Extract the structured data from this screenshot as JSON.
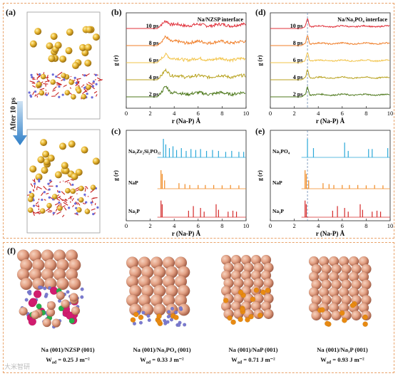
{
  "figure": {
    "panel_labels": {
      "a": "(a)",
      "b": "(b)",
      "c": "(c)",
      "d": "(d)",
      "e": "(e)",
      "f": "(f)"
    },
    "after_label": "After 10 ps",
    "watermark": "大米智研"
  },
  "colors": {
    "frame": "#e9a36a",
    "line_10ps": "#e0303a",
    "line_8ps": "#f07f2a",
    "line_6ps": "#f2c44a",
    "line_4ps": "#b8a21e",
    "line_2ps": "#4f7a1e",
    "xrd_blue": "#2aa8d8",
    "xrd_orange": "#f08a22",
    "xrd_red": "#d42a2a",
    "na_atom": "#e8a37e",
    "na_atom_dark": "#b76c4e",
    "p_atom": "#e88a12",
    "o_atom": "#7a7ad0",
    "zr_atom": "#d01c6e",
    "si_atom": "#28b04a"
  },
  "chart_data": [
    {
      "id": "b",
      "type": "line",
      "title": "Na/NZSP interface",
      "xlabel": "r (Na-P) Å",
      "ylabel": "g (r)",
      "xlim": [
        0,
        10
      ],
      "xticks": [
        0,
        2,
        4,
        6,
        8,
        10
      ],
      "series": [
        {
          "name": "10 ps",
          "peak_r": 3.3,
          "peak_h": 0.55
        },
        {
          "name": "8 ps",
          "peak_r": 3.3,
          "peak_h": 0.7
        },
        {
          "name": "6 ps",
          "peak_r": 3.3,
          "peak_h": 0.65
        },
        {
          "name": "4 ps",
          "peak_r": 3.3,
          "peak_h": 0.8
        },
        {
          "name": "2 ps",
          "peak_r": 3.3,
          "peak_h": 0.9
        }
      ]
    },
    {
      "id": "d",
      "type": "line",
      "title": "Na/Na₃PO₄ interface",
      "xlabel": "r (Na-P) Å",
      "ylabel": "g (r)",
      "xlim": [
        0,
        10
      ],
      "xticks": [
        0,
        2,
        4,
        6,
        8,
        10
      ],
      "series": [
        {
          "name": "10 ps",
          "peak_r": 3.1,
          "peak_h": 0.95
        },
        {
          "name": "8 ps",
          "peak_r": 3.1,
          "peak_h": 0.95
        },
        {
          "name": "6 ps",
          "peak_r": 3.1,
          "peak_h": 0.95
        },
        {
          "name": "4 ps",
          "peak_r": 3.1,
          "peak_h": 0.95
        },
        {
          "name": "2 ps",
          "peak_r": 3.1,
          "peak_h": 0.95
        }
      ]
    },
    {
      "id": "c",
      "type": "line",
      "xlabel": "r (Na-P) Å",
      "ylabel": "g (r)",
      "xlim": [
        0,
        10
      ],
      "xticks": [
        0,
        2,
        4,
        6,
        8,
        10
      ],
      "series": [
        {
          "name": "Na₃Zr₂Si₂PO₁₂",
          "peaks": [
            [
              3.1,
              1.0
            ],
            [
              3.3,
              0.7
            ],
            [
              3.6,
              0.5
            ],
            [
              3.9,
              0.6
            ],
            [
              4.2,
              0.4
            ],
            [
              4.6,
              0.5
            ],
            [
              5.0,
              0.35
            ],
            [
              5.4,
              0.45
            ],
            [
              5.8,
              0.4
            ],
            [
              6.2,
              0.45
            ],
            [
              6.7,
              0.35
            ],
            [
              7.2,
              0.4
            ],
            [
              7.7,
              0.35
            ],
            [
              8.3,
              0.3
            ],
            [
              8.8,
              0.35
            ],
            [
              9.4,
              0.3
            ],
            [
              9.8,
              0.3
            ]
          ]
        },
        {
          "name": "NaP",
          "peaks": [
            [
              2.9,
              1.0
            ],
            [
              3.0,
              0.8
            ],
            [
              3.2,
              0.45
            ],
            [
              4.4,
              0.3
            ],
            [
              4.9,
              0.25
            ],
            [
              5.3,
              0.2
            ],
            [
              6.0,
              0.2
            ],
            [
              6.6,
              0.2
            ],
            [
              7.3,
              0.2
            ],
            [
              8.0,
              0.18
            ],
            [
              8.7,
              0.2
            ],
            [
              9.4,
              0.18
            ]
          ]
        },
        {
          "name": "Na₃P",
          "peaks": [
            [
              2.9,
              0.9
            ],
            [
              3.0,
              0.7
            ],
            [
              5.2,
              0.35
            ],
            [
              5.6,
              0.6
            ],
            [
              6.2,
              0.5
            ],
            [
              6.5,
              0.3
            ],
            [
              7.5,
              0.7
            ],
            [
              7.7,
              0.4
            ],
            [
              8.5,
              0.3
            ],
            [
              8.9,
              0.35
            ],
            [
              9.2,
              0.3
            ]
          ]
        }
      ]
    },
    {
      "id": "e",
      "type": "line",
      "xlabel": "r (Na-P) Å",
      "ylabel": "g (r)",
      "xlim": [
        0,
        10
      ],
      "xticks": [
        0,
        2,
        4,
        6,
        8,
        10
      ],
      "series": [
        {
          "name": "Na₃PO₄",
          "peaks": [
            [
              3.1,
              1.0
            ],
            [
              3.6,
              0.5
            ],
            [
              6.2,
              0.8
            ],
            [
              6.5,
              0.35
            ],
            [
              8.2,
              0.45
            ],
            [
              8.5,
              0.45
            ],
            [
              9.8,
              0.5
            ]
          ]
        },
        {
          "name": "NaP",
          "peaks": [
            [
              2.9,
              1.0
            ],
            [
              3.0,
              0.8
            ],
            [
              3.2,
              0.45
            ],
            [
              4.4,
              0.3
            ],
            [
              4.9,
              0.25
            ],
            [
              5.3,
              0.2
            ],
            [
              6.0,
              0.2
            ],
            [
              6.6,
              0.2
            ],
            [
              7.3,
              0.2
            ],
            [
              8.0,
              0.18
            ],
            [
              8.7,
              0.2
            ],
            [
              9.4,
              0.18
            ]
          ]
        },
        {
          "name": "Na₃P",
          "peaks": [
            [
              2.9,
              0.9
            ],
            [
              3.0,
              0.7
            ],
            [
              5.2,
              0.35
            ],
            [
              5.6,
              0.6
            ],
            [
              6.2,
              0.5
            ],
            [
              6.5,
              0.3
            ],
            [
              7.5,
              0.7
            ],
            [
              7.7,
              0.4
            ],
            [
              8.5,
              0.3
            ],
            [
              8.9,
              0.35
            ],
            [
              9.2,
              0.3
            ]
          ]
        }
      ]
    }
  ],
  "panel_f": {
    "structures": [
      {
        "name": "Na (001)/NZSP (001)",
        "wad": "W",
        "wad_sub": "ad",
        "wad_value": " = 0.25 J m⁻²"
      },
      {
        "name": "Na (001)/Na₃PO₄ (001)",
        "wad": "W",
        "wad_sub": "ad",
        "wad_value": " = 0.33 J m⁻²"
      },
      {
        "name": "Na (001)/NaP (001)",
        "wad": "W",
        "wad_sub": "ad",
        "wad_value": " = 0.71 J m⁻²"
      },
      {
        "name": "Na (001)/Na₃P (001)",
        "wad": "W",
        "wad_sub": "ad",
        "wad_value": " = 0.93 J m⁻²"
      }
    ]
  }
}
